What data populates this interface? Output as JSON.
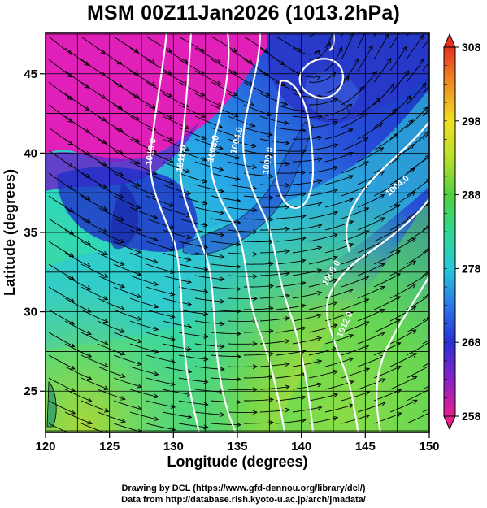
{
  "title": "MSM 00Z11Jan2026 (1013.2hPa)",
  "axes": {
    "xlabel": "Longitude (degrees)",
    "ylabel": "Latitude  (degrees)",
    "xticks": [
      "120",
      "125",
      "130",
      "135",
      "140",
      "145",
      "150"
    ],
    "yticks": [
      "25",
      "30",
      "35",
      "40",
      "45"
    ],
    "xlim": [
      120,
      150
    ],
    "ylim": [
      22.4,
      47.6
    ]
  },
  "colorbar": {
    "ticks": [
      "258",
      "268",
      "278",
      "288",
      "298",
      "308"
    ],
    "range": [
      258,
      308
    ]
  },
  "contours": {
    "labels": [
      "1016.0",
      "1012.0",
      "1008.0",
      "1004.0",
      "1000.0",
      "1004.0",
      "1008.0",
      "1012.0"
    ]
  },
  "credits": {
    "line1": "Drawing by DCL (https://www.gfd-dennou.org/library/dcl/)",
    "line2": "Data from http://database.rish.kyoto-u.ac.jp/arch/jmadata/"
  }
}
